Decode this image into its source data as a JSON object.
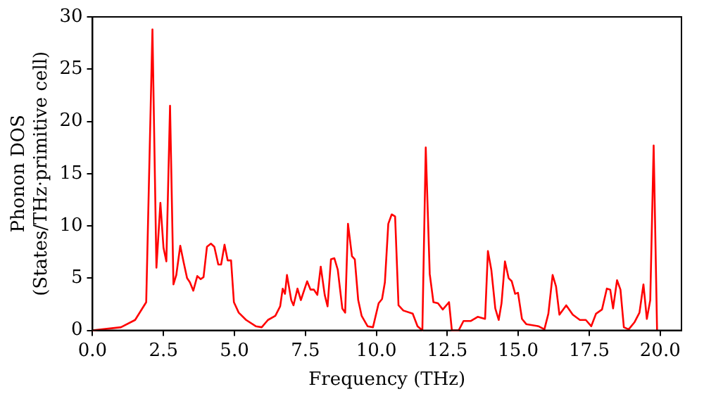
{
  "chart_data": {
    "type": "line",
    "xlabel": "Frequency (THz)",
    "ylabel": "Phonon DOS\n(States/THz·primitive cell)",
    "x": [
      0,
      1,
      1.5,
      1.89,
      2.11,
      2.25,
      2.39,
      2.5,
      2.6,
      2.73,
      2.85,
      2.95,
      3.09,
      3.21,
      3.33,
      3.43,
      3.55,
      3.69,
      3.81,
      3.91,
      4.03,
      4.17,
      4.29,
      4.43,
      4.53,
      4.65,
      4.76,
      4.88,
      4.98,
      5.15,
      5.41,
      5.75,
      5.96,
      6.18,
      6.44,
      6.61,
      6.7,
      6.78,
      6.85,
      7.0,
      7.08,
      7.22,
      7.34,
      7.56,
      7.68,
      7.8,
      7.92,
      8.04,
      8.18,
      8.28,
      8.4,
      8.52,
      8.64,
      8.8,
      8.9,
      9.0,
      9.14,
      9.24,
      9.36,
      9.48,
      9.69,
      9.88,
      10.08,
      10.2,
      10.3,
      10.42,
      10.54,
      10.66,
      10.78,
      10.95,
      11.28,
      11.45,
      11.62,
      11.74,
      11.88,
      12.01,
      12.17,
      12.34,
      12.56,
      12.66,
      12.9,
      13.07,
      13.33,
      13.57,
      13.83,
      13.93,
      14.05,
      14.19,
      14.31,
      14.41,
      14.53,
      14.66,
      14.77,
      14.89,
      14.99,
      15.13,
      15.28,
      15.71,
      15.92,
      16.06,
      16.21,
      16.33,
      16.45,
      16.69,
      16.92,
      17.17,
      17.38,
      17.57,
      17.74,
      17.95,
      18.12,
      18.24,
      18.34,
      18.48,
      18.6,
      18.72,
      18.89,
      19.1,
      19.27,
      19.41,
      19.53,
      19.65,
      19.77,
      19.89
    ],
    "series": [
      {
        "color": "#ff0000",
        "values": [
          0,
          0.3,
          1,
          2.7,
          28.8,
          6.0,
          12.2,
          7.9,
          6.6,
          21.5,
          4.4,
          5.3,
          8.1,
          6.5,
          5.0,
          4.6,
          3.8,
          5.2,
          4.9,
          5.1,
          8.0,
          8.3,
          8.0,
          6.3,
          6.3,
          8.2,
          6.7,
          6.7,
          2.7,
          1.7,
          1.0,
          0.4,
          0.3,
          1.0,
          1.4,
          2.3,
          4.0,
          3.5,
          5.3,
          2.9,
          2.4,
          4.0,
          2.9,
          4.7,
          3.9,
          3.9,
          3.4,
          6.1,
          3.4,
          2.3,
          6.8,
          6.9,
          5.8,
          2.1,
          1.7,
          10.2,
          7.1,
          6.8,
          2.9,
          1.4,
          0.4,
          0.3,
          2.6,
          3.0,
          4.6,
          10.2,
          11.1,
          10.9,
          2.4,
          1.9,
          1.6,
          0.4,
          0,
          17.5,
          5.4,
          2.7,
          2.6,
          2.0,
          2.7,
          0,
          0,
          0.9,
          0.9,
          1.3,
          1.1,
          7.6,
          5.8,
          2.1,
          1.0,
          2.6,
          6.6,
          5.0,
          4.7,
          3.5,
          3.6,
          1.1,
          0.6,
          0.4,
          0.1,
          1.6,
          5.3,
          4.2,
          1.5,
          2.4,
          1.5,
          1.0,
          1.0,
          0.4,
          1.6,
          2.0,
          4.0,
          3.9,
          2.1,
          4.8,
          3.9,
          0.3,
          0.1,
          0.8,
          1.7,
          4.4,
          1.1,
          2.9,
          17.7,
          0
        ]
      }
    ],
    "xlim": [
      0,
      20.75
    ],
    "ylim": [
      0,
      30
    ],
    "xticks": [
      {
        "value": 0,
        "label": "0.0"
      },
      {
        "value": 2.5,
        "label": "2.5"
      },
      {
        "value": 5,
        "label": "5.0"
      },
      {
        "value": 7.5,
        "label": "7.5"
      },
      {
        "value": 10,
        "label": "10.0"
      },
      {
        "value": 12.5,
        "label": "12.5"
      },
      {
        "value": 15,
        "label": "15.0"
      },
      {
        "value": 17.5,
        "label": "17.5"
      },
      {
        "value": 20,
        "label": "20.0"
      }
    ],
    "yticks": [
      0,
      5,
      10,
      15,
      20,
      25,
      30
    ],
    "grid": false,
    "legend": false,
    "marker": "none",
    "line_style": "solid"
  }
}
